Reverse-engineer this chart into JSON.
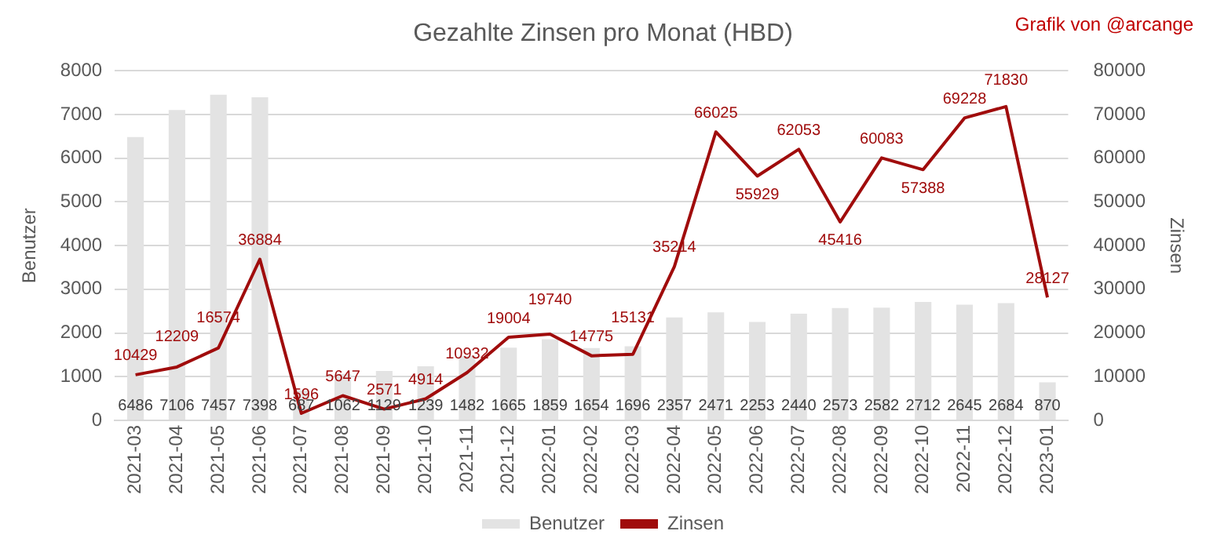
{
  "chart_data": {
    "type": "bar",
    "title": "Gezahlte Zinsen pro Monat (HBD)",
    "annotations": [
      "Grafik von @arcange"
    ],
    "ylabel": "Benutzer",
    "y2label": "Zinsen",
    "categories": [
      "2021-03",
      "2021-04",
      "2021-05",
      "2021-06",
      "2021-07",
      "2021-08",
      "2021-09",
      "2021-10",
      "2021-11",
      "2021-12",
      "2022-01",
      "2022-02",
      "2022-03",
      "2022-04",
      "2022-05",
      "2022-06",
      "2022-07",
      "2022-08",
      "2022-09",
      "2022-10",
      "2022-11",
      "2022-12",
      "2023-01"
    ],
    "series": [
      {
        "name": "Benutzer",
        "color": "#e3e3e3",
        "values": [
          6486,
          7106,
          7457,
          7398,
          687,
          1062,
          1129,
          1239,
          1482,
          1665,
          1859,
          1654,
          1696,
          2357,
          2471,
          2253,
          2440,
          2573,
          2582,
          2712,
          2645,
          2684,
          870
        ]
      },
      {
        "name": "Zinsen",
        "type": "line",
        "axis": "y2",
        "color": "#a00c0c",
        "values": [
          10429,
          12209,
          16574,
          36884,
          1596,
          5647,
          2571,
          4914,
          10932,
          19004,
          19740,
          14775,
          15131,
          35214,
          66025,
          55929,
          62053,
          45416,
          60083,
          57388,
          69228,
          71830,
          28127
        ]
      }
    ],
    "ylim": [
      0,
      8000
    ],
    "yticks": [
      0,
      1000,
      2000,
      3000,
      4000,
      5000,
      6000,
      7000,
      8000
    ],
    "y2lim": [
      0,
      80000
    ],
    "y2ticks": [
      0,
      10000,
      20000,
      30000,
      40000,
      50000,
      60000,
      70000,
      80000
    ],
    "grid": "y",
    "legend": "bottom",
    "data_labels": true,
    "marker": "none",
    "line_style": "solid"
  }
}
